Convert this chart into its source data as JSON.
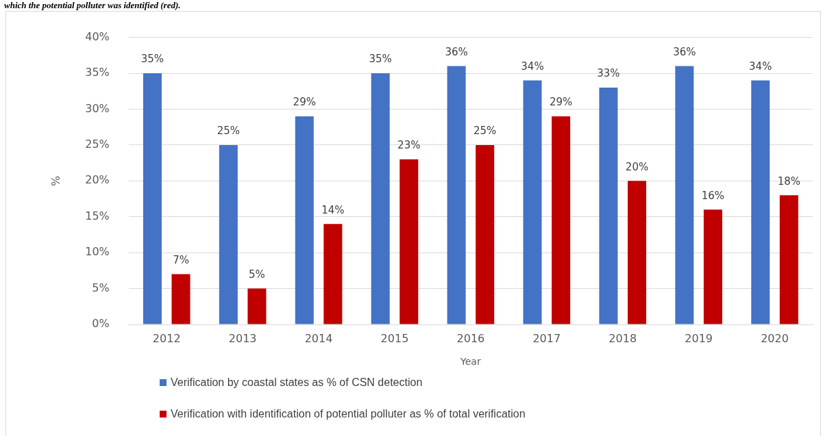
{
  "chart_data": {
    "type": "bar",
    "xlabel": "Year",
    "ylabel": "%",
    "annotations": [
      "which the potential polluter was identified (red)."
    ],
    "categories": [
      "2012",
      "2013",
      "2014",
      "2015",
      "2016",
      "2017",
      "2018",
      "2019",
      "2020"
    ],
    "series": [
      {
        "name": "Verification by coastal states as % of CSN detection",
        "color": "#4472c4",
        "values": [
          35,
          25,
          29,
          35,
          36,
          34,
          33,
          36,
          34
        ],
        "value_labels": [
          "35%",
          "25%",
          "29%",
          "35%",
          "36%",
          "34%",
          "33%",
          "36%",
          "34%"
        ]
      },
      {
        "name": "Verification with identification of potential polluter as % of total verification",
        "color": "#c00000",
        "values": [
          7,
          5,
          14,
          23,
          25,
          29,
          20,
          16,
          18
        ],
        "value_labels": [
          "7%",
          "5%",
          "14%",
          "23%",
          "25%",
          "29%",
          "20%",
          "16%",
          "18%"
        ]
      }
    ],
    "ylim": [
      0,
      40
    ],
    "yticks": [
      {
        "value": 0,
        "label": "0%"
      },
      {
        "value": 5,
        "label": "5%"
      },
      {
        "value": 10,
        "label": "10%"
      },
      {
        "value": 15,
        "label": "15%"
      },
      {
        "value": 20,
        "label": "20%"
      },
      {
        "value": 25,
        "label": "25%"
      },
      {
        "value": 30,
        "label": "30%"
      },
      {
        "value": 35,
        "label": "35%"
      },
      {
        "value": 40,
        "label": "40%"
      }
    ],
    "grid": "y",
    "legend": "bottom"
  }
}
